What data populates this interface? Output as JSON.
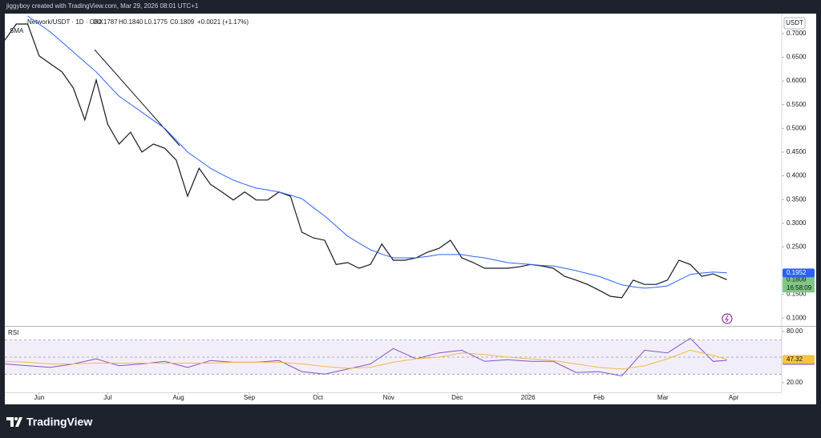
{
  "header": {
    "title": "jiggyboy created with TradingView.com, Mar 29, 2026 08:01 UTC+1",
    "brand": "TradingView"
  },
  "legend": {
    "symbol": "Network/USDT · 1D · OKX",
    "open": "O0.1787",
    "high": "H0.1840",
    "low": "L0.1775",
    "close": "C0.1809",
    "change": "+0.0021 (+1.17%)",
    "indicator": "SMA"
  },
  "chart_data": [
    {
      "type": "line",
      "currency": "USDT",
      "countdown": "16:58:09",
      "x": [
        -15,
        -10,
        -5,
        0,
        5,
        10,
        15,
        20,
        25,
        30,
        35,
        40,
        45,
        50,
        55,
        60,
        65,
        70,
        75,
        80,
        85,
        90,
        95,
        100,
        105,
        110,
        115,
        120,
        125,
        130,
        135,
        140,
        145,
        150,
        155,
        160,
        165,
        170,
        175,
        180,
        185,
        190,
        195,
        200,
        205,
        210,
        215,
        220,
        225,
        230,
        235,
        240,
        245,
        250,
        255,
        260,
        265,
        270,
        275,
        280,
        285,
        290,
        295,
        301
      ],
      "xlim": [
        -15,
        325
      ],
      "ylim": [
        0.0835,
        0.742
      ],
      "yticks": [
        {
          "value": 0.7,
          "label": "0.7000"
        },
        {
          "value": 0.65,
          "label": "0.6500"
        },
        {
          "value": 0.6,
          "label": "0.6000"
        },
        {
          "value": 0.55,
          "label": "0.5500"
        },
        {
          "value": 0.5,
          "label": "0.5000"
        },
        {
          "value": 0.45,
          "label": "0.4500"
        },
        {
          "value": 0.4,
          "label": "0.4000"
        },
        {
          "value": 0.35,
          "label": "0.3500"
        },
        {
          "value": 0.3,
          "label": "0.3000"
        },
        {
          "value": 0.25,
          "label": "0.2500"
        },
        {
          "value": 0.15,
          "label": "0.1500"
        },
        {
          "value": 0.1,
          "label": "0.1000"
        }
      ],
      "series": [
        {
          "name": "Close",
          "color": "#131722",
          "label_color": "#81c784",
          "values": [
            0.686,
            0.72,
            0.72,
            0.653,
            0.636,
            0.619,
            0.585,
            0.518,
            0.602,
            0.509,
            0.467,
            0.492,
            0.45,
            0.467,
            0.458,
            0.433,
            0.357,
            0.416,
            0.382,
            0.366,
            0.349,
            0.366,
            0.349,
            0.349,
            0.366,
            0.357,
            0.281,
            0.269,
            0.264,
            0.213,
            0.217,
            0.205,
            0.213,
            0.256,
            0.222,
            0.222,
            0.227,
            0.239,
            0.247,
            0.264,
            0.227,
            0.217,
            0.205,
            0.205,
            0.205,
            0.208,
            0.213,
            0.21,
            0.205,
            0.188,
            0.18,
            0.171,
            0.159,
            0.146,
            0.143,
            0.18,
            0.171,
            0.171,
            0.18,
            0.222,
            0.213,
            0.188,
            0.193,
            0.1809
          ]
        },
        {
          "name": "SMA",
          "color": "#2962ff",
          "label_color": "#2962ff",
          "values": [
            null,
            null,
            0.737,
            0.72,
            0.703,
            0.682,
            0.661,
            0.64,
            0.619,
            0.593,
            0.568,
            0.551,
            0.534,
            0.517,
            0.5,
            0.475,
            0.45,
            0.433,
            0.416,
            0.403,
            0.391,
            0.382,
            0.374,
            0.37,
            0.366,
            0.359,
            0.352,
            0.333,
            0.315,
            0.294,
            0.273,
            0.258,
            0.244,
            0.235,
            0.227,
            0.227,
            0.227,
            0.23,
            0.234,
            0.234,
            0.234,
            0.23,
            0.227,
            0.222,
            0.217,
            0.215,
            0.213,
            0.211,
            0.21,
            0.205,
            0.2,
            0.194,
            0.188,
            0.179,
            0.17,
            0.166,
            0.163,
            0.165,
            0.168,
            0.18,
            0.192,
            0.195,
            0.197,
            0.1952
          ]
        }
      ]
    },
    {
      "type": "line",
      "title": "RSI",
      "x": [
        -15,
        -5,
        5,
        15,
        25,
        35,
        45,
        55,
        65,
        75,
        85,
        95,
        105,
        115,
        125,
        135,
        145,
        155,
        165,
        175,
        185,
        195,
        205,
        215,
        225,
        235,
        245,
        255,
        265,
        275,
        285,
        295,
        301
      ],
      "xlim": [
        -15,
        325
      ],
      "ylim": [
        8.75,
        85.6
      ],
      "yticks": [
        {
          "value": 80,
          "label": "80.00"
        },
        {
          "value": 20,
          "label": "20.00"
        }
      ],
      "bands": [
        70,
        50,
        30
      ],
      "xticks": [
        {
          "value": 0,
          "label": "Jun"
        },
        {
          "value": 30,
          "label": "Jul"
        },
        {
          "value": 61,
          "label": "Aug"
        },
        {
          "value": 92,
          "label": "Sep"
        },
        {
          "value": 122,
          "label": "Oct"
        },
        {
          "value": 153,
          "label": "Nov"
        },
        {
          "value": 183,
          "label": "Dec"
        },
        {
          "value": 214,
          "label": "2026"
        },
        {
          "value": 245,
          "label": "Feb"
        },
        {
          "value": 273,
          "label": "Mar"
        },
        {
          "value": 304,
          "label": "Apr"
        }
      ],
      "series": [
        {
          "name": "RSI",
          "color": "#7e57c2",
          "label_color": "#7e57c2",
          "values": [
            42,
            40,
            38,
            42,
            48,
            40,
            42,
            45,
            38,
            46,
            44,
            44,
            46,
            33,
            30,
            36,
            42,
            60,
            48,
            55,
            58,
            45,
            47,
            45,
            45,
            32,
            33,
            28,
            58,
            55,
            72,
            45,
            46.25
          ]
        },
        {
          "name": "RSI MA",
          "color": "#f5b942",
          "label_color": "#f5c542",
          "values": [
            45,
            44,
            42,
            42,
            43,
            43,
            43,
            43,
            43,
            43,
            44,
            44,
            44,
            42,
            39,
            37,
            38,
            44,
            48,
            50,
            55,
            53,
            50,
            48,
            46,
            42,
            38,
            36,
            40,
            48,
            58,
            52,
            47.32
          ]
        }
      ]
    }
  ]
}
